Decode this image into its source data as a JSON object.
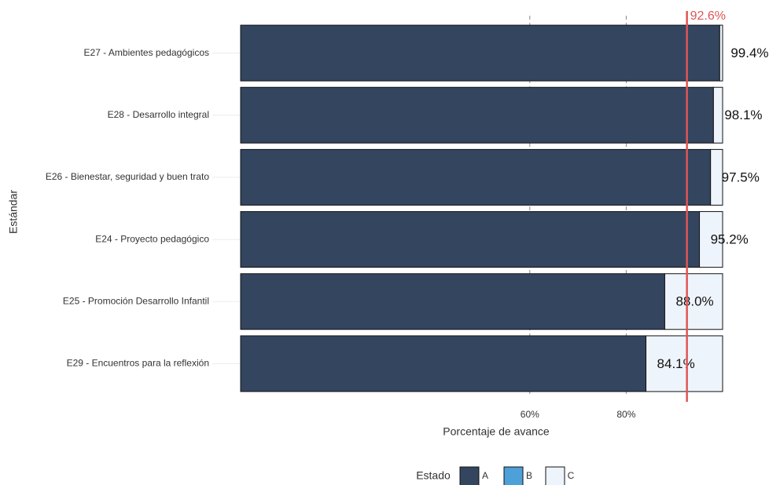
{
  "chart_data": {
    "type": "stacked_bar_horizontal",
    "y_label": "Estándar",
    "x_label": "Porcentaje de avance",
    "categories": [
      "E27 - Ambientes pedagógicos",
      "E28 - Desarrollo integral",
      "E26 - Bienestar, seguridad y buen trato",
      "E24 - Proyecto pedagógico",
      "E25 - Promoción Desarrollo Infantil",
      "E29 - Encuentros para la reflexión"
    ],
    "series": [
      {
        "name": "A",
        "color": "#344560",
        "values": [
          99.4,
          98.1,
          97.5,
          95.2,
          88.0,
          84.1
        ],
        "value_labels": [
          "99.4%",
          "98.1%",
          "97.5%",
          "95.2%",
          "88.0%",
          "84.1%"
        ]
      },
      {
        "name": "B",
        "color": "#4ea0d8",
        "values": [
          0,
          0,
          0,
          0,
          0,
          0
        ]
      },
      {
        "name": "C",
        "color": "#eef4fb",
        "values": [
          0.6,
          1.9,
          2.5,
          4.8,
          12.0,
          15.9
        ]
      }
    ],
    "legend_title": "Estado",
    "legend_position": "bottom",
    "xlim": [
      0,
      100
    ],
    "xticks": [
      {
        "value": 60,
        "label": "60%"
      },
      {
        "value": 80,
        "label": "80%"
      }
    ],
    "reference_line": {
      "value": 92.6,
      "label": "92.6%",
      "color": "#e05555"
    },
    "grid": true
  }
}
